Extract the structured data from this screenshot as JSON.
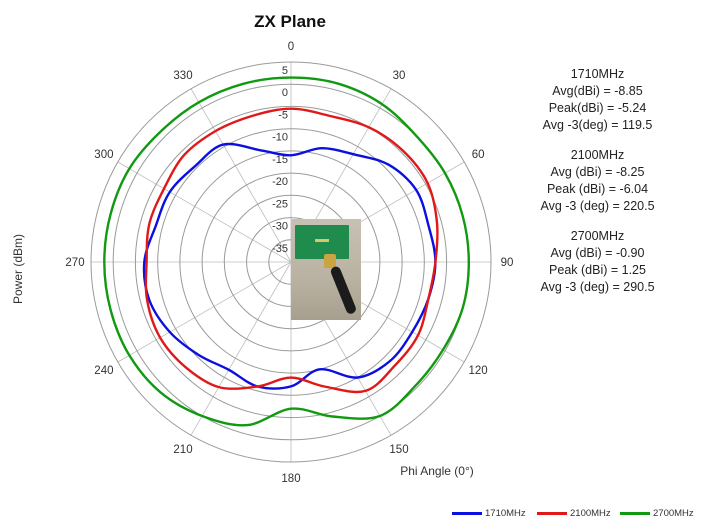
{
  "chart_data": {
    "type": "polar-line",
    "title": "ZX Plane",
    "radial_label": "Power (dBm)",
    "angular_label": "Phi Angle (0°)",
    "radial_ticks": [
      "5",
      "0",
      "-5",
      "-10",
      "-15",
      "-20",
      "-25",
      "-30",
      "-35"
    ],
    "radial_tick_values": [
      5,
      0,
      -5,
      -10,
      -15,
      -20,
      -25,
      -30,
      -35
    ],
    "rlim": [
      -40,
      5
    ],
    "angle_ticks": [
      "0",
      "30",
      "60",
      "90",
      "120",
      "150",
      "180",
      "210",
      "240",
      "270",
      "300",
      "330"
    ],
    "angle_tick_values": [
      0,
      30,
      60,
      90,
      120,
      150,
      180,
      210,
      240,
      270,
      300,
      330
    ],
    "grid": true,
    "legend_position": "bottom-right",
    "theta": [
      0,
      15,
      30,
      45,
      60,
      75,
      90,
      105,
      120,
      135,
      150,
      165,
      180,
      195,
      210,
      225,
      240,
      255,
      270,
      285,
      300,
      315,
      330,
      345,
      360
    ],
    "series": [
      {
        "name": "1710MHz",
        "color": "#0a10e0",
        "values": [
          -16,
          -13.5,
          -12,
          -9,
          -7.5,
          -8,
          -7.5,
          -8,
          -8.5,
          -8.5,
          -10,
          -15,
          -12,
          -11,
          -12,
          -10.5,
          -8.5,
          -7,
          -7,
          -8.5,
          -8.5,
          -9.5,
          -9.5,
          -14,
          -16
        ]
      },
      {
        "name": "2100MHz",
        "color": "#e01818",
        "values": [
          -5.5,
          -6,
          -5,
          -4.5,
          -4.5,
          -6,
          -7.5,
          -8,
          -7,
          -7,
          -6.5,
          -11,
          -14,
          -11,
          -7.5,
          -6.5,
          -6,
          -6.5,
          -7.5,
          -7,
          -7,
          -6,
          -6,
          -6,
          -5.5
        ]
      },
      {
        "name": "2700MHz",
        "color": "#119a11",
        "values": [
          1.5,
          1.5,
          1,
          0,
          0,
          0,
          0,
          0,
          -0.5,
          -0.5,
          0,
          -4,
          -7,
          -2,
          0,
          1.5,
          2,
          2,
          2,
          2,
          2,
          1.5,
          1.5,
          1.5,
          1.5
        ]
      }
    ],
    "stats": [
      {
        "freq": "1710MHz",
        "lines": [
          "Avg(dBi) = -8.85",
          "Peak(dBi) = -5.24",
          "Avg -3(deg) = 119.5"
        ]
      },
      {
        "freq": "2100MHz",
        "lines": [
          "Avg (dBi) =  -8.25",
          "Peak (dBi) =  -6.04",
          "Avg -3 (deg) =  220.5"
        ]
      },
      {
        "freq": "2700MHz",
        "lines": [
          "Avg (dBi) =  -0.90",
          "Peak (dBi) =  1.25",
          "Avg -3 (deg) =  290.5"
        ]
      }
    ]
  },
  "photo": {
    "icon": "antenna-photo-icon"
  }
}
